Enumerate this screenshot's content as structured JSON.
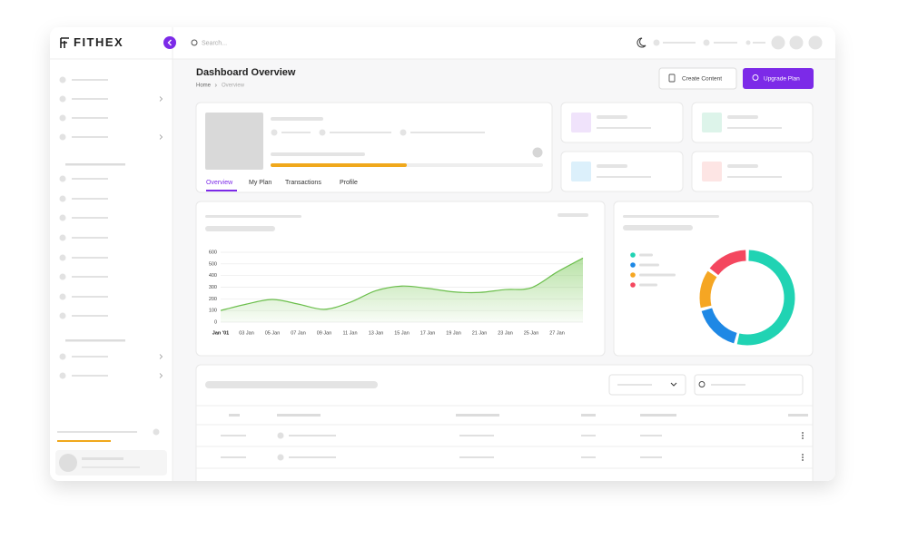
{
  "brand": "FITHEX",
  "search": "Search...",
  "title": "Dashboard Overview",
  "breadcrumb": [
    "Home",
    "Overview"
  ],
  "buttons": [
    "Create Content",
    "Upgrade Plan"
  ],
  "tabs": [
    "Overview",
    "My Plan",
    "Transactions",
    "Profile"
  ],
  "chart_data": [
    {
      "type": "area",
      "categories": [
        "Jan '01",
        "03 Jan",
        "05 Jan",
        "07 Jan",
        "09 Jan",
        "11 Jan",
        "13 Jan",
        "15 Jan",
        "17 Jan",
        "19 Jan",
        "21 Jan",
        "23 Jan",
        "25 Jan",
        "27 Jan",
        null
      ],
      "values": [
        100,
        155,
        195,
        155,
        110,
        170,
        270,
        310,
        290,
        260,
        255,
        280,
        295,
        430,
        550
      ],
      "color": "#6cbf4d",
      "ylim": [
        0,
        600
      ],
      "yticks": [
        0,
        100,
        200,
        300,
        400,
        500,
        600
      ],
      "grid": true
    },
    {
      "type": "donut",
      "values": [
        54,
        17,
        14,
        15
      ],
      "colors": [
        "#20d3b3",
        "#1e88e5",
        "#f5a623",
        "#f4475f"
      ]
    }
  ]
}
